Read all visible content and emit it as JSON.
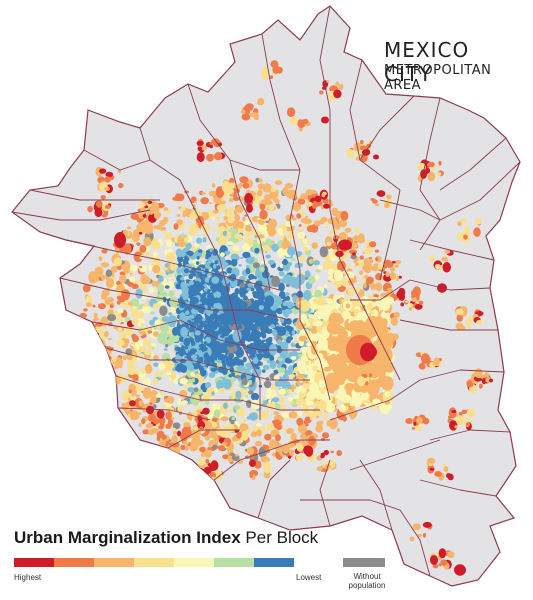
{
  "title": "MEXICO CITY",
  "subtitle": "METROPOLITAN AREA",
  "legend": {
    "title_bold": "Urban Marginalization Index",
    "title_rest": " Per Block",
    "label_high": "Highest",
    "label_low": "Lowest",
    "label_none_1": "Without",
    "label_none_2": "population",
    "scale": [
      "#d01c2a",
      "#f07a4a",
      "#f7b56b",
      "#f9e08e",
      "#faf6b6",
      "#b9e0a4",
      "#80bfd9",
      "#3a7cb8"
    ],
    "no_pop_color": "#8c8c8c"
  },
  "colors": {
    "land": "#e3e3e5",
    "border": "#8a3c4e"
  }
}
